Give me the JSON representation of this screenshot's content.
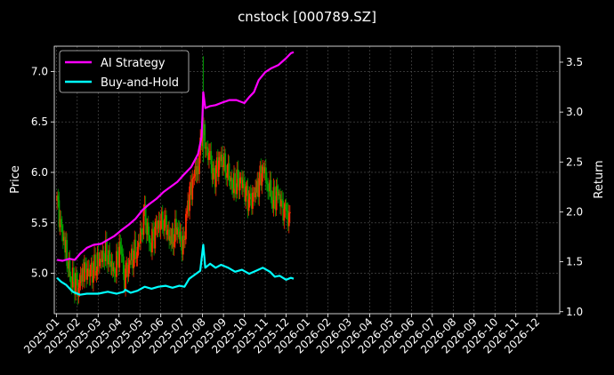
{
  "chart_data": {
    "type": "line",
    "title": "cnstock [000789.SZ]",
    "xlabel": "",
    "ylabel": "Price",
    "y2label": "Return",
    "background": "#000000",
    "grid": true,
    "legend_placement": "top-left",
    "x_ticks": [
      "2025-01",
      "2025-02",
      "2025-03",
      "2025-04",
      "2025-05",
      "2025-06",
      "2025-07",
      "2025-08",
      "2025-09",
      "2025-10",
      "2025-11",
      "2025-12",
      "2026-01",
      "2026-02",
      "2026-03",
      "2026-04",
      "2026-05",
      "2026-06",
      "2026-07",
      "2026-08",
      "2026-09",
      "2026-10",
      "2026-11",
      "2026-12"
    ],
    "y_ticks": [
      "5.0",
      "5.5",
      "6.0",
      "6.5",
      "7.0"
    ],
    "y2_ticks": [
      "1.0",
      "1.5",
      "2.0",
      "2.5",
      "3.0",
      "3.5"
    ],
    "ylim": [
      4.6,
      7.25
    ],
    "y2lim": [
      0.98,
      3.66
    ],
    "xlim_months": [
      -0.1,
      24.1
    ],
    "candles": {
      "up_color": "#ff2a00",
      "down_color": "#00a000",
      "approx_close": [
        [
          "2025-01-02",
          5.72
        ],
        [
          "2025-01-08",
          5.45
        ],
        [
          "2025-01-15",
          5.2
        ],
        [
          "2025-01-22",
          4.95
        ],
        [
          "2025-02-03",
          4.88
        ],
        [
          "2025-02-10",
          5.05
        ],
        [
          "2025-02-20",
          5.0
        ],
        [
          "2025-03-03",
          5.12
        ],
        [
          "2025-03-12",
          5.2
        ],
        [
          "2025-03-25",
          5.02
        ],
        [
          "2025-04-03",
          5.28
        ],
        [
          "2025-04-09",
          4.98
        ],
        [
          "2025-04-18",
          5.12
        ],
        [
          "2025-04-28",
          5.25
        ],
        [
          "2025-05-08",
          5.55
        ],
        [
          "2025-05-16",
          5.3
        ],
        [
          "2025-05-26",
          5.45
        ],
        [
          "2025-06-05",
          5.55
        ],
        [
          "2025-06-16",
          5.3
        ],
        [
          "2025-06-25",
          5.45
        ],
        [
          "2025-07-03",
          5.25
        ],
        [
          "2025-07-10",
          5.7
        ],
        [
          "2025-07-18",
          5.95
        ],
        [
          "2025-07-25",
          6.1
        ],
        [
          "2025-08-01",
          6.4
        ],
        [
          "2025-08-06",
          6.25
        ],
        [
          "2025-08-12",
          6.1
        ],
        [
          "2025-08-18",
          5.95
        ],
        [
          "2025-08-26",
          6.15
        ],
        [
          "2025-09-05",
          6.05
        ],
        [
          "2025-09-15",
          5.85
        ],
        [
          "2025-09-25",
          5.95
        ],
        [
          "2025-10-09",
          5.7
        ],
        [
          "2025-10-20",
          5.85
        ],
        [
          "2025-10-28",
          6.05
        ],
        [
          "2025-11-05",
          5.9
        ],
        [
          "2025-11-12",
          5.72
        ],
        [
          "2025-11-20",
          5.78
        ],
        [
          "2025-12-01",
          5.55
        ],
        [
          "2025-12-08",
          5.58
        ]
      ]
    },
    "series": [
      {
        "name": "AI Strategy",
        "axis": "right",
        "color": "#ff00ff",
        "points": [
          [
            "2025-01-02",
            1.52
          ],
          [
            "2025-01-10",
            1.51
          ],
          [
            "2025-01-20",
            1.53
          ],
          [
            "2025-01-28",
            1.52
          ],
          [
            "2025-02-05",
            1.58
          ],
          [
            "2025-02-15",
            1.64
          ],
          [
            "2025-02-25",
            1.67
          ],
          [
            "2025-03-05",
            1.68
          ],
          [
            "2025-03-15",
            1.72
          ],
          [
            "2025-03-25",
            1.76
          ],
          [
            "2025-04-05",
            1.82
          ],
          [
            "2025-04-15",
            1.87
          ],
          [
            "2025-04-25",
            1.93
          ],
          [
            "2025-05-05",
            2.02
          ],
          [
            "2025-05-15",
            2.08
          ],
          [
            "2025-05-25",
            2.13
          ],
          [
            "2025-06-05",
            2.2
          ],
          [
            "2025-06-15",
            2.25
          ],
          [
            "2025-06-25",
            2.3
          ],
          [
            "2025-07-05",
            2.38
          ],
          [
            "2025-07-15",
            2.45
          ],
          [
            "2025-07-25",
            2.58
          ],
          [
            "2025-07-30",
            2.75
          ],
          [
            "2025-08-01",
            2.98
          ],
          [
            "2025-08-02",
            3.2
          ],
          [
            "2025-08-05",
            3.04
          ],
          [
            "2025-08-12",
            3.06
          ],
          [
            "2025-08-20",
            3.07
          ],
          [
            "2025-09-01",
            3.1
          ],
          [
            "2025-09-10",
            3.12
          ],
          [
            "2025-09-20",
            3.12
          ],
          [
            "2025-10-01",
            3.09
          ],
          [
            "2025-10-08",
            3.15
          ],
          [
            "2025-10-15",
            3.2
          ],
          [
            "2025-10-22",
            3.32
          ],
          [
            "2025-11-01",
            3.4
          ],
          [
            "2025-11-10",
            3.44
          ],
          [
            "2025-11-20",
            3.47
          ],
          [
            "2025-12-01",
            3.54
          ],
          [
            "2025-12-08",
            3.59
          ],
          [
            "2025-12-12",
            3.6
          ]
        ]
      },
      {
        "name": "Buy-and-Hold",
        "axis": "right",
        "color": "#00ffff",
        "points": [
          [
            "2025-01-02",
            1.34
          ],
          [
            "2025-01-08",
            1.3
          ],
          [
            "2025-01-15",
            1.27
          ],
          [
            "2025-01-25",
            1.2
          ],
          [
            "2025-02-05",
            1.17
          ],
          [
            "2025-02-15",
            1.18
          ],
          [
            "2025-03-01",
            1.18
          ],
          [
            "2025-03-15",
            1.2
          ],
          [
            "2025-03-28",
            1.18
          ],
          [
            "2025-04-08",
            1.2
          ],
          [
            "2025-04-10",
            1.22
          ],
          [
            "2025-04-18",
            1.19
          ],
          [
            "2025-04-28",
            1.21
          ],
          [
            "2025-05-08",
            1.25
          ],
          [
            "2025-05-18",
            1.23
          ],
          [
            "2025-05-28",
            1.25
          ],
          [
            "2025-06-08",
            1.26
          ],
          [
            "2025-06-18",
            1.24
          ],
          [
            "2025-06-28",
            1.26
          ],
          [
            "2025-07-05",
            1.25
          ],
          [
            "2025-07-12",
            1.33
          ],
          [
            "2025-07-22",
            1.38
          ],
          [
            "2025-07-28",
            1.41
          ],
          [
            "2025-08-02",
            1.67
          ],
          [
            "2025-08-05",
            1.44
          ],
          [
            "2025-08-12",
            1.48
          ],
          [
            "2025-08-20",
            1.44
          ],
          [
            "2025-08-28",
            1.47
          ],
          [
            "2025-09-08",
            1.44
          ],
          [
            "2025-09-18",
            1.4
          ],
          [
            "2025-09-28",
            1.42
          ],
          [
            "2025-10-08",
            1.38
          ],
          [
            "2025-10-18",
            1.41
          ],
          [
            "2025-10-28",
            1.44
          ],
          [
            "2025-11-08",
            1.4
          ],
          [
            "2025-11-15",
            1.35
          ],
          [
            "2025-11-22",
            1.36
          ],
          [
            "2025-12-01",
            1.32
          ],
          [
            "2025-12-08",
            1.34
          ],
          [
            "2025-12-12",
            1.33
          ]
        ]
      }
    ]
  }
}
